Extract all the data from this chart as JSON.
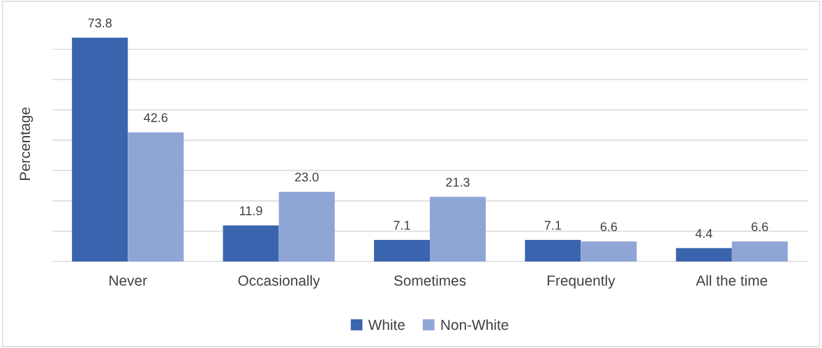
{
  "chart_data": {
    "type": "bar",
    "ylabel": "Percentage",
    "categories": [
      "Never",
      "Occasionally",
      "Sometimes",
      "Frequently",
      "All the time"
    ],
    "series": [
      {
        "name": "White",
        "color": "#3a64ad",
        "values": [
          73.8,
          11.9,
          7.1,
          7.1,
          4.4
        ],
        "value_labels": [
          "73.8",
          "11.9",
          "7.1",
          "7.1",
          "4.4"
        ]
      },
      {
        "name": "Non-White",
        "color": "#8fa5d6",
        "values": [
          42.6,
          23.0,
          21.3,
          6.6,
          6.6
        ],
        "value_labels": [
          "42.6",
          "23.0",
          "21.3",
          "6.6",
          "6.6"
        ]
      }
    ],
    "tick_labels": "x",
    "grid": "y",
    "legend": "bottom"
  }
}
